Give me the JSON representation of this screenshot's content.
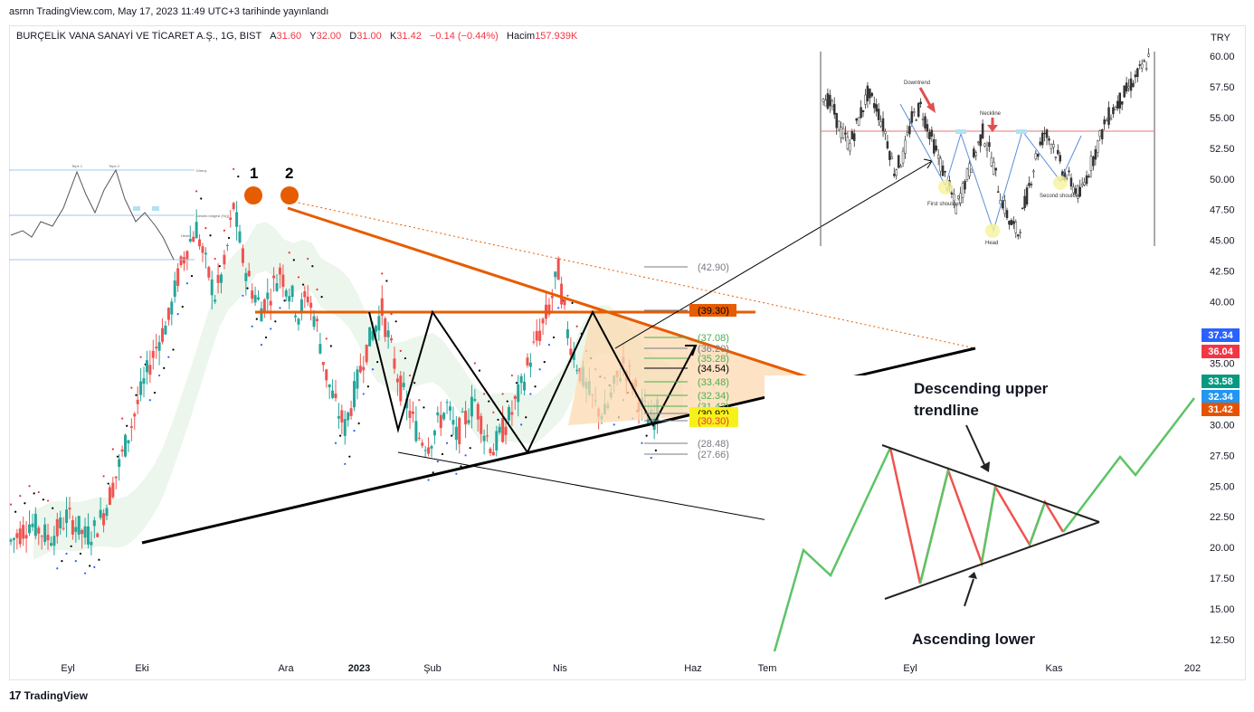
{
  "header": {
    "publish_line": "asrnn TradingView.com, May 17, 2023 11:49 UTC+3 tarihinde yayınlandı"
  },
  "legend": {
    "symbol": "BURÇELİK VANA SANAYİ VE TİCARET A.Ş., 1G, BIST",
    "o_label": "A",
    "o_val": "31.60",
    "h_label": "Y",
    "h_val": "32.00",
    "l_label": "D",
    "l_val": "31.00",
    "c_label": "K",
    "c_val": "31.42",
    "change": "−0.14 (−0.44%)",
    "vol_label": "Hacim",
    "vol_val": "157.939K"
  },
  "currency": "TRY",
  "footer": {
    "brand": "TradingView"
  },
  "annotations": {
    "peak1": "1",
    "peak2": "2",
    "triangle_upper_text_1": "Descending upper",
    "triangle_upper_text_2": "trendline",
    "triangle_lower_text": "Ascending lower",
    "hs_downtrend": "Downtrend",
    "hs_neckline": "Neckline",
    "hs_first_shoulder": "First shoulder",
    "hs_second_shoulder": "Second shoulder",
    "hs_head": "Head",
    "small_peak1": "Tepe 1",
    "small_peak2": "Tepe 2",
    "small_direnc": "Direnç",
    "small_destek": "Destek bölgesi (%{})",
    "small_hedef": "Hedef"
  },
  "colors": {
    "up": "#26a69a",
    "down": "#ef5350",
    "orange": "#e65c00",
    "dot_orange": "#ff5d00",
    "level_green": "#4caf50",
    "level_grey": "#787b86",
    "triangle_fill": "#fcd9b0"
  },
  "chart_data": {
    "type": "candlestick",
    "price_axis_ticks": [
      "60.00",
      "57.50",
      "55.00",
      "52.50",
      "50.00",
      "47.50",
      "45.00",
      "42.50",
      "40.00",
      "37.50",
      "35.00",
      "32.50",
      "30.00",
      "27.50",
      "25.00",
      "22.50",
      "20.00",
      "17.50",
      "15.00",
      "12.50"
    ],
    "time_axis_labels": [
      "Eyl",
      "Eki",
      "Ara",
      "2023",
      "Şub",
      "Nis",
      "Haz",
      "Tem",
      "Eyl",
      "Kas",
      "202"
    ],
    "price_badges": [
      {
        "value": "37.34",
        "color": "#2962ff"
      },
      {
        "value": "36.04",
        "color": "#f23645"
      },
      {
        "value": "33.58",
        "color": "#089981"
      },
      {
        "value": "32.34",
        "color": "#2196f3"
      },
      {
        "value": "31.42",
        "color": "#e65100"
      }
    ],
    "horizontal_levels": [
      {
        "value": "(42.90)",
        "style": "grey"
      },
      {
        "value": "(39.30)",
        "style": "orange-box"
      },
      {
        "value": "(37.08)",
        "style": "green"
      },
      {
        "value": "(36.20)",
        "style": "grey"
      },
      {
        "value": "(35.28)",
        "style": "green"
      },
      {
        "value": "(34.54)",
        "style": "black"
      },
      {
        "value": "(33.48)",
        "style": "green"
      },
      {
        "value": "(32.34)",
        "style": "green"
      },
      {
        "value": "(31.42)",
        "style": "green"
      },
      {
        "value": "(30.92)",
        "style": "yellow-box"
      },
      {
        "value": "(30.30)",
        "style": "red-yellow-box"
      },
      {
        "value": "(28.48)",
        "style": "grey"
      },
      {
        "value": "(27.66)",
        "style": "grey"
      }
    ],
    "price_path": [
      20.5,
      21.2,
      22.0,
      21.5,
      20.8,
      21.3,
      22.5,
      21.9,
      20.9,
      21.4,
      22.8,
      25.0,
      27.5,
      30.0,
      32.5,
      35.0,
      37.0,
      38.5,
      42.0,
      44.5,
      46.0,
      43.0,
      40.5,
      42.8,
      47.8,
      43.5,
      41.0,
      39.5,
      40.8,
      42.5,
      41.0,
      39.0,
      40.5,
      38.0,
      34.0,
      31.5,
      29.8,
      32.5,
      35.5,
      37.5,
      39.3,
      36.0,
      33.0,
      31.0,
      29.0,
      28.5,
      30.0,
      31.5,
      29.0,
      30.5,
      32.0,
      29.5,
      28.0,
      29.5,
      31.0,
      33.0,
      35.5,
      37.5,
      39.5,
      42.5,
      37.5,
      35.0,
      33.0,
      31.5,
      30.8,
      33.0,
      35.0,
      33.5,
      31.5,
      30.3,
      31.4
    ]
  }
}
